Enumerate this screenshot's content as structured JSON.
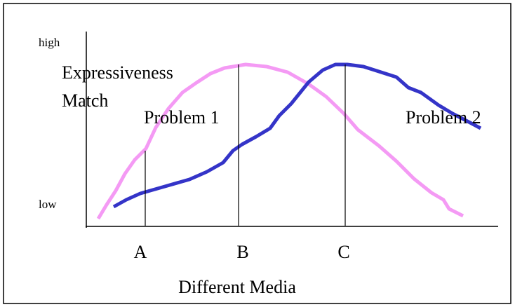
{
  "y_axis": {
    "high": "high",
    "low": "low",
    "label": [
      "Expressiveness",
      "Match"
    ]
  },
  "annotations": [
    "Problem 1",
    "Problem 2"
  ],
  "x_axis": {
    "categories": [
      "A",
      "B",
      "C"
    ],
    "label": "Different Media"
  }
}
